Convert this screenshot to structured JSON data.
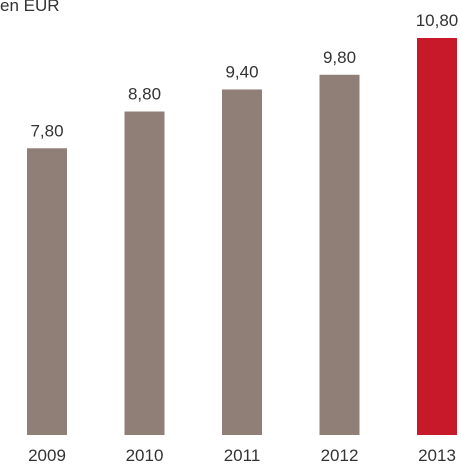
{
  "chart_data": {
    "type": "bar",
    "subtitle": "en EUR",
    "categories": [
      "2009",
      "2010",
      "2011",
      "2012",
      "2013"
    ],
    "values": [
      7.8,
      8.8,
      9.4,
      9.8,
      10.8
    ],
    "value_labels": [
      "7,80",
      "8,80",
      "9,40",
      "9,80",
      "10,80"
    ],
    "colors": [
      "#8f7f77",
      "#8f7f77",
      "#8f7f77",
      "#8f7f77",
      "#c8192b"
    ]
  }
}
